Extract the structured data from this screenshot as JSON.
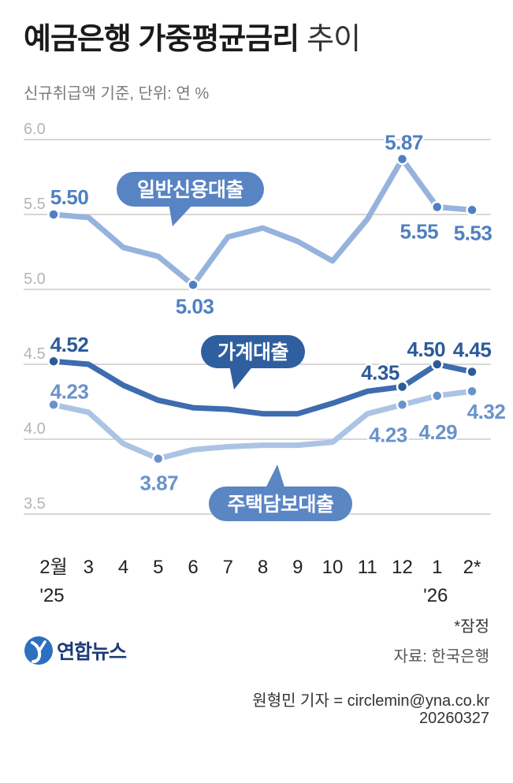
{
  "chart_data": {
    "type": "line",
    "title": {
      "main": "예금은행 가중평균금리",
      "suffix": "추이"
    },
    "subtitle": "신규취급액 기준, 단위: 연 %",
    "categories": [
      "2월",
      "3",
      "4",
      "5",
      "6",
      "7",
      "8",
      "9",
      "10",
      "11",
      "12",
      "1",
      "2*"
    ],
    "year_labels": [
      {
        "index": 0,
        "label": "'25"
      },
      {
        "index": 11,
        "label": "'26"
      }
    ],
    "yticks": [
      "6.0",
      "5.5",
      "5.0",
      "4.5",
      "4.0",
      "3.5"
    ],
    "ylim": [
      3.5,
      6.0
    ],
    "grid": true,
    "legend_placement": "inline",
    "series": [
      {
        "name": "일반신용대출",
        "values": [
          5.5,
          5.48,
          5.28,
          5.22,
          5.03,
          5.35,
          5.41,
          5.32,
          5.19,
          5.47,
          5.87,
          5.55,
          5.53
        ],
        "data_labels": [
          "5.50",
          null,
          null,
          null,
          "5.03",
          null,
          null,
          null,
          null,
          null,
          "5.87",
          "5.55",
          "5.53"
        ],
        "line_color": "#95b3dc",
        "label_color": "#4f80c2",
        "callout_color": "#5884c3"
      },
      {
        "name": "가계대출",
        "values": [
          4.52,
          4.5,
          4.36,
          4.26,
          4.21,
          4.2,
          4.17,
          4.17,
          4.24,
          4.32,
          4.35,
          4.5,
          4.45
        ],
        "data_labels": [
          "4.52",
          null,
          null,
          null,
          null,
          null,
          null,
          null,
          null,
          null,
          "4.35",
          "4.50",
          "4.45"
        ],
        "line_color": "#3d6caf",
        "label_color": "#2c5a9b",
        "callout_color": "#2f5f9f"
      },
      {
        "name": "주택담보대출",
        "values": [
          4.23,
          4.18,
          3.97,
          3.87,
          3.93,
          3.95,
          3.96,
          3.96,
          3.98,
          4.17,
          4.23,
          4.29,
          4.32
        ],
        "data_labels": [
          "4.23",
          null,
          null,
          "3.87",
          null,
          null,
          null,
          null,
          null,
          null,
          "4.23",
          "4.29",
          "4.32"
        ],
        "line_color": "#abc4e4",
        "label_color": "#6a93cb",
        "callout_color": "#5b86c4"
      }
    ],
    "note": "*잠정"
  },
  "footer": {
    "logo_text": "연합뉴스",
    "source": "자료: 한국은행",
    "credit": "원형민 기자 = circlemin@yna.co.kr",
    "date": "20260327"
  },
  "colors": {
    "grid": "#cccccc",
    "tick_label": "#b5b5b5",
    "axis_text": "#222222",
    "logo_mark": "#2d6fc0",
    "logo_text": "#1d3b78"
  }
}
